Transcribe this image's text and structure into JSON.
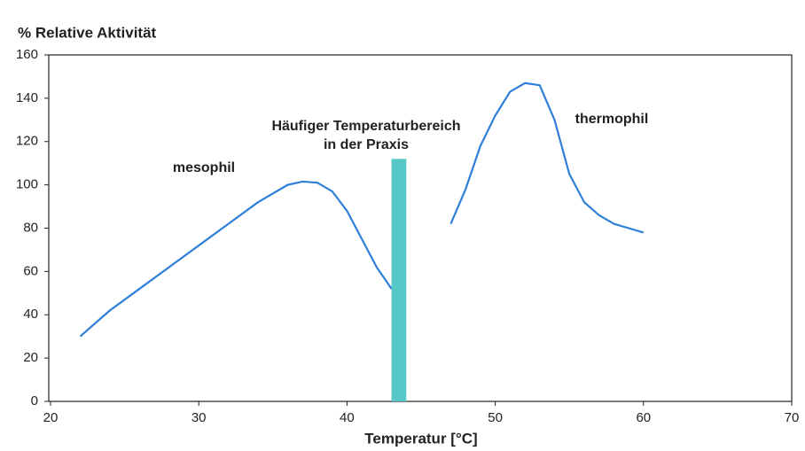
{
  "chart_data": {
    "type": "line",
    "title": "% Relative Aktivität",
    "x_label": "Temperatur [°C]",
    "xlim": [
      20,
      70
    ],
    "xticks": [
      20,
      30,
      40,
      50,
      60,
      70
    ],
    "ylim": [
      0,
      160
    ],
    "yticks": [
      0,
      20,
      40,
      60,
      80,
      100,
      120,
      140,
      160
    ],
    "grid": false,
    "series": [
      {
        "name": "mesophil",
        "color": "#2f7fd8",
        "x": [
          22,
          24,
          26,
          28,
          30,
          32,
          34,
          36,
          37,
          38,
          39,
          40,
          41,
          42,
          43
        ],
        "values": [
          30,
          42,
          52,
          62,
          72,
          82,
          92,
          100,
          101.5,
          101,
          97,
          88,
          75,
          62,
          52
        ]
      },
      {
        "name": "thermophil",
        "color": "#2f7fd8",
        "x": [
          47,
          48,
          49,
          50,
          51,
          52,
          53,
          54,
          55,
          56,
          57,
          58,
          59,
          60
        ],
        "values": [
          82,
          98,
          118,
          132,
          143,
          147,
          146,
          130,
          105,
          92,
          86,
          82,
          80,
          78
        ]
      }
    ],
    "band": {
      "x0": 43,
      "x1": 44,
      "top": 112,
      "color": "#56c8c8",
      "label": [
        "Häufiger Temperaturbereich",
        "in der Praxis"
      ]
    }
  }
}
